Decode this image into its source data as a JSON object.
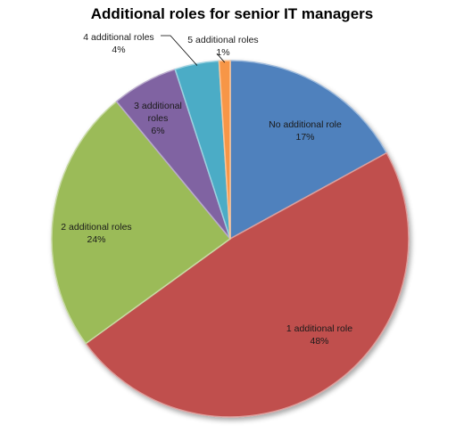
{
  "chart_data": {
    "type": "pie",
    "title": "Additional roles for senior IT managers",
    "categories": [
      "No additional role",
      "1 additional role",
      "2 additional roles",
      "3 additional roles",
      "4 additional roles",
      "5 additional roles"
    ],
    "values": [
      17,
      48,
      24,
      6,
      4,
      1
    ],
    "value_labels": [
      "17%",
      "48%",
      "24%",
      "6%",
      "4%",
      "1%"
    ],
    "colors": [
      "#4F81BD",
      "#C0504D",
      "#9BBB59",
      "#8064A2",
      "#4BACC6",
      "#F79646"
    ],
    "legend": "none",
    "start": "12 o'clock, clockwise",
    "grid": false
  }
}
